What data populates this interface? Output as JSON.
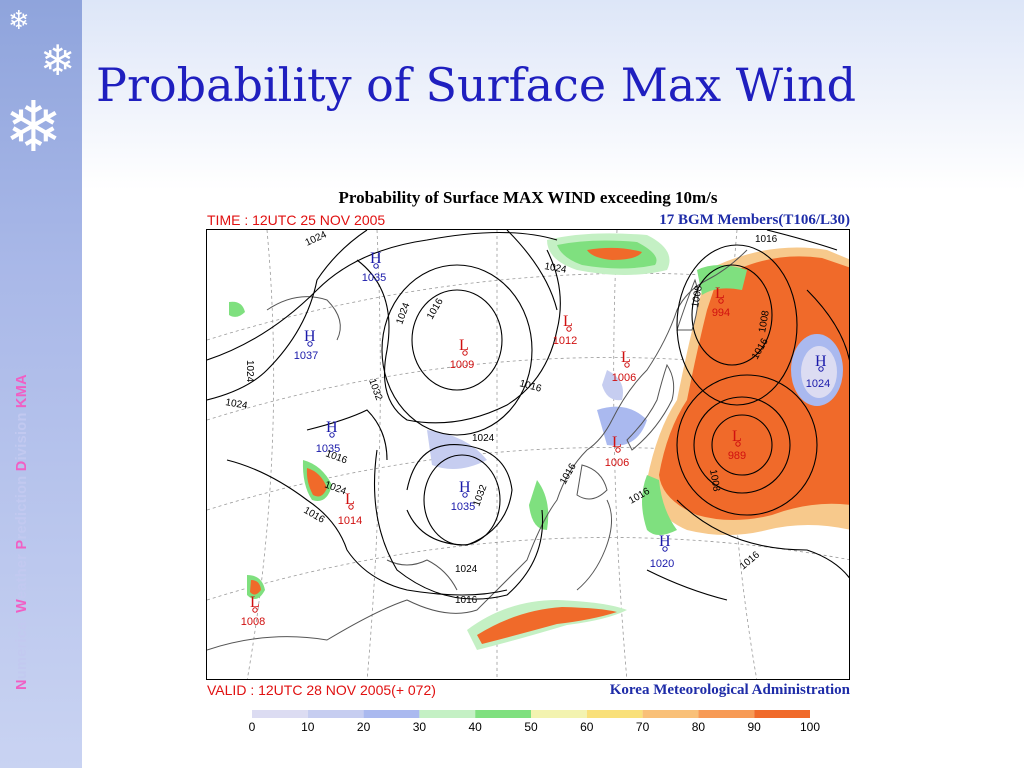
{
  "slide": {
    "title": "Probability of Surface Max Wind",
    "vertical_text": {
      "parts": [
        {
          "initial": "N",
          "rest": "umerical "
        },
        {
          "initial": "W",
          "rest": "eather "
        },
        {
          "initial": "P",
          "rest": "rediction "
        },
        {
          "initial": "D",
          "rest": "ivision  "
        },
        {
          "initial": "",
          "rest": "KMA"
        }
      ]
    },
    "snowflake_icons": [
      "snowflake-icon",
      "snowflake-icon",
      "snowflake-icon"
    ],
    "colors": {
      "title": "#1f1fbf",
      "sidebar": "#a9b8e8",
      "accent": "#f05fc4"
    }
  },
  "map": {
    "title": "Probability of Surface MAX WIND exceeding 10m/s",
    "time_label": "TIME : 12UTC 25 NOV 2005",
    "members_label": "17 BGM Members(T106/L30)",
    "valid_label": "VALID : 12UTC 28 NOV 2005(+ 072)",
    "agency_label": "Korea Meteorological Administration",
    "highs": [
      {
        "letter": "H",
        "value": "1035"
      },
      {
        "letter": "H",
        "value": "1037"
      },
      {
        "letter": "H",
        "value": "1035"
      },
      {
        "letter": "H",
        "value": "1035"
      },
      {
        "letter": "H",
        "value": "1024"
      },
      {
        "letter": "H",
        "value": "1020"
      }
    ],
    "lows": [
      {
        "letter": "L",
        "value": "1009"
      },
      {
        "letter": "L",
        "value": "1012"
      },
      {
        "letter": "L",
        "value": "1006"
      },
      {
        "letter": "L",
        "value": "994"
      },
      {
        "letter": "L",
        "value": "989"
      },
      {
        "letter": "L",
        "value": "1006"
      },
      {
        "letter": "L",
        "value": "1014"
      },
      {
        "letter": "L",
        "value": "1008"
      }
    ],
    "isobar_labels": [
      "1024",
      "1024",
      "1016",
      "1032",
      "1024",
      "1016",
      "1024",
      "1016",
      "1032",
      "1024",
      "1024",
      "1016",
      "1016",
      "1016",
      "1008",
      "1016",
      "1024",
      "1008",
      "1016",
      "1016",
      "1024",
      "1008",
      "1016"
    ]
  },
  "legend": {
    "ticks": [
      "0",
      "10",
      "20",
      "30",
      "40",
      "50",
      "60",
      "70",
      "80",
      "90",
      "100"
    ],
    "colors": [
      "#ffffff",
      "#dcdcf2",
      "#c6cdf0",
      "#aab9ef",
      "#c4f0c4",
      "#7fe07f",
      "#f3f3b0",
      "#f9e07a",
      "#f9c078",
      "#f79a55",
      "#f06a2a"
    ]
  }
}
